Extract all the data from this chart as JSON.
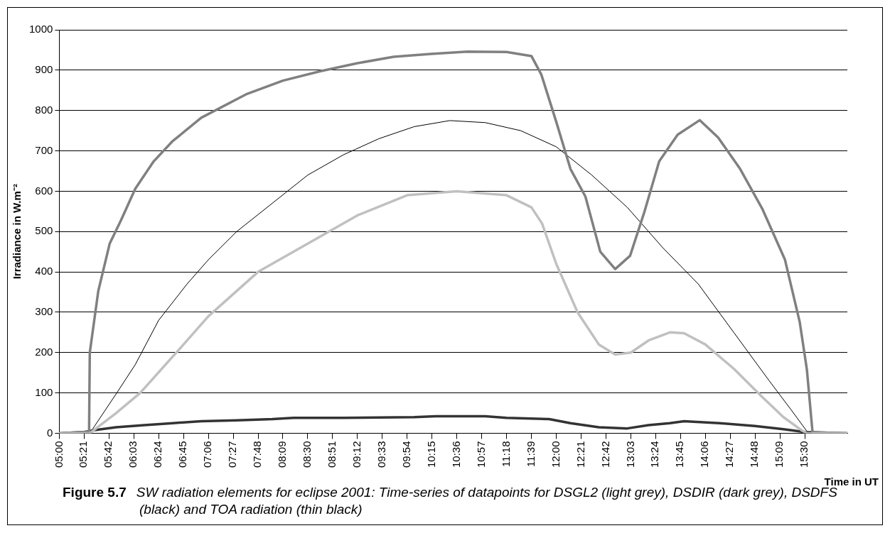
{
  "chart_data": {
    "type": "line",
    "xlabel": "Time in UT",
    "ylabel": "Irradiance in W.m⁻²",
    "annotations": [
      "Figure 5.7",
      "SW radiation elements for eclipse 2001:  Time-series of datapoints for DSGL2 (light grey), DSDIR (dark grey), DSDFS (black) and TOA radiation (thin black)"
    ],
    "xlim": [
      5,
      16.1
    ],
    "xticks": [
      {
        "value": 5,
        "label": "05:00"
      },
      {
        "value": 5.35,
        "label": "05:21"
      },
      {
        "value": 5.7,
        "label": "05:42"
      },
      {
        "value": 6.05,
        "label": "06:03"
      },
      {
        "value": 6.4,
        "label": "06:24"
      },
      {
        "value": 6.75,
        "label": "06:45"
      },
      {
        "value": 7.1,
        "label": "07:06"
      },
      {
        "value": 7.45,
        "label": "07:27"
      },
      {
        "value": 7.8,
        "label": "07:48"
      },
      {
        "value": 8.15,
        "label": "08:09"
      },
      {
        "value": 8.5,
        "label": "08:30"
      },
      {
        "value": 8.85,
        "label": "08:51"
      },
      {
        "value": 9.2,
        "label": "09:12"
      },
      {
        "value": 9.55,
        "label": "09:33"
      },
      {
        "value": 9.9,
        "label": "09:54"
      },
      {
        "value": 10.25,
        "label": "10:15"
      },
      {
        "value": 10.6,
        "label": "10:36"
      },
      {
        "value": 10.95,
        "label": "10:57"
      },
      {
        "value": 11.3,
        "label": "11:18"
      },
      {
        "value": 11.65,
        "label": "11:39"
      },
      {
        "value": 12,
        "label": "12:00"
      },
      {
        "value": 12.35,
        "label": "12:21"
      },
      {
        "value": 12.7,
        "label": "12:42"
      },
      {
        "value": 13.05,
        "label": "13:03"
      },
      {
        "value": 13.4,
        "label": "13:24"
      },
      {
        "value": 13.75,
        "label": "13:45"
      },
      {
        "value": 14.1,
        "label": "14:06"
      },
      {
        "value": 14.45,
        "label": "14:27"
      },
      {
        "value": 14.8,
        "label": "14:48"
      },
      {
        "value": 15.15,
        "label": "15:09"
      },
      {
        "value": 15.5,
        "label": "15:30"
      }
    ],
    "ylim": [
      0,
      1000
    ],
    "yticks": [
      0,
      100,
      200,
      300,
      400,
      500,
      600,
      700,
      800,
      900,
      1000
    ],
    "grid": "y",
    "legend": false,
    "marker": "none",
    "line_style": "solid",
    "series": [
      {
        "color": "#c0c0c0",
        "x": [
          5.0,
          5.43,
          5.8,
          6.14,
          6.75,
          7.1,
          7.8,
          8.5,
          9.2,
          9.9,
          10.6,
          11.3,
          11.65,
          11.8,
          12.0,
          12.3,
          12.6,
          12.83,
          13.05,
          13.3,
          13.6,
          13.8,
          14.1,
          14.5,
          14.9,
          15.2,
          15.45,
          15.53,
          16.1
        ],
        "values": [
          0,
          0,
          50,
          100,
          220,
          290,
          400,
          470,
          540,
          590,
          600,
          590,
          560,
          520,
          420,
          300,
          220,
          195,
          200,
          230,
          250,
          248,
          220,
          160,
          90,
          40,
          8,
          0,
          0
        ]
      },
      {
        "color": "#808080",
        "x": [
          5.0,
          5.35,
          5.42,
          5.43,
          5.55,
          5.71,
          5.87,
          6.07,
          6.33,
          6.59,
          7.0,
          7.63,
          8.15,
          8.67,
          9.19,
          9.71,
          10.23,
          10.75,
          11.3,
          11.65,
          11.79,
          12.0,
          12.2,
          12.41,
          12.62,
          12.83,
          13.04,
          13.24,
          13.45,
          13.71,
          14.02,
          14.28,
          14.59,
          14.9,
          15.22,
          15.43,
          15.53,
          15.61,
          16.1
        ],
        "values": [
          0,
          3,
          5,
          200,
          353,
          470,
          528,
          606,
          674,
          723,
          782,
          840,
          874,
          897,
          917,
          933,
          940,
          946,
          945,
          935,
          889,
          772,
          655,
          587,
          450,
          407,
          440,
          548,
          674,
          740,
          776,
          733,
          655,
          557,
          431,
          275,
          158,
          2,
          0
        ]
      },
      {
        "color": "#333333",
        "x": [
          5.0,
          5.35,
          5.5,
          5.8,
          6.2,
          6.6,
          7.0,
          7.5,
          8.0,
          8.3,
          9.0,
          10.0,
          10.3,
          11.0,
          11.3,
          11.9,
          12.2,
          12.6,
          13.0,
          13.3,
          13.6,
          13.8,
          14.3,
          14.8,
          15.2,
          15.5,
          16.1
        ],
        "values": [
          0,
          3,
          8,
          15,
          20,
          25,
          30,
          32,
          35,
          38,
          38,
          40,
          42,
          42,
          38,
          35,
          25,
          15,
          12,
          20,
          25,
          30,
          25,
          18,
          10,
          3,
          0
        ]
      },
      {
        "color": "#000000",
        "x": [
          5.43,
          5.81,
          6.07,
          6.4,
          6.8,
          7.1,
          7.5,
          8.0,
          8.5,
          9.0,
          9.5,
          10.0,
          10.5,
          11.0,
          11.5,
          12.0,
          12.5,
          13.0,
          13.5,
          14.0,
          14.5,
          15.0,
          15.3,
          15.53
        ],
        "values": [
          0,
          100,
          170,
          280,
          370,
          430,
          500,
          570,
          640,
          690,
          730,
          760,
          775,
          770,
          750,
          710,
          640,
          560,
          460,
          370,
          250,
          130,
          60,
          5
        ]
      }
    ]
  }
}
